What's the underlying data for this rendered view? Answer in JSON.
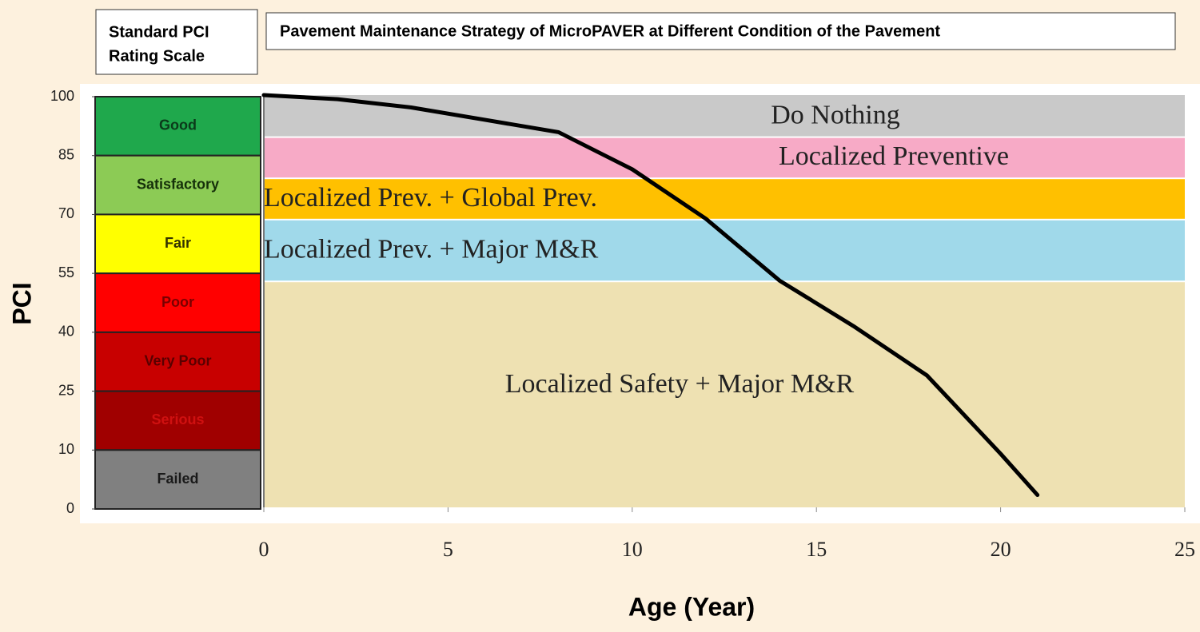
{
  "chart_data": {
    "type": "line",
    "scale_title": [
      "Standard PCI",
      "Rating Scale"
    ],
    "title": "Pavement Maintenance Strategy of MicroPAVER at Different Condition of the Pavement",
    "x_label": "Age (Year)",
    "y_label": "PCI",
    "xlim": [
      0,
      25
    ],
    "xticks": [
      0,
      5,
      10,
      15,
      20,
      25
    ],
    "ylim": [
      0,
      100
    ],
    "yticks": [
      0,
      10,
      25,
      40,
      55,
      70,
      85,
      100
    ],
    "ratings": [
      {
        "label": "Good",
        "min": 85,
        "max": 100,
        "color": "#1fa84c",
        "text_color": "#0b3a1a"
      },
      {
        "label": "Satisfactory",
        "min": 70,
        "max": 85,
        "color": "#8ccb55",
        "text_color": "#15300a"
      },
      {
        "label": "Fair",
        "min": 55,
        "max": 70,
        "color": "#ffff00",
        "text_color": "#333300"
      },
      {
        "label": "Poor",
        "min": 40,
        "max": 55,
        "color": "#ff0000",
        "text_color": "#7a0000"
      },
      {
        "label": "Very Poor",
        "min": 25,
        "max": 40,
        "color": "#c80000",
        "text_color": "#5a0000"
      },
      {
        "label": "Serious",
        "min": 10,
        "max": 25,
        "color": "#a00000",
        "text_color": "#d01010"
      },
      {
        "label": "Failed",
        "min": 0,
        "max": 10,
        "color": "#808080",
        "text_color": "#1a1a1a"
      }
    ],
    "strategies": [
      {
        "label": "Do Nothing",
        "min": 90,
        "max": 100,
        "color": "#c9c9c9"
      },
      {
        "label": "Localized Preventive",
        "min": 80,
        "max": 90,
        "color": "#f7aac6"
      },
      {
        "label": "Localized Prev. + Global Prev.",
        "min": 70,
        "max": 80,
        "color": "#ffc000"
      },
      {
        "label": "Localized Prev. + Major M&R",
        "min": 55,
        "max": 70,
        "color": "#a0d9ea"
      },
      {
        "label": "Localized Safety + Major M&R",
        "min": 0,
        "max": 55,
        "color": "#eee1b2"
      }
    ],
    "series": [
      {
        "color": "#000000",
        "x": [
          0,
          2,
          4,
          6,
          8,
          10,
          12,
          14,
          16,
          18,
          20,
          21
        ],
        "values": [
          100,
          99,
          97,
          94,
          91,
          82,
          70,
          55,
          44,
          32,
          13,
          3
        ]
      }
    ]
  }
}
